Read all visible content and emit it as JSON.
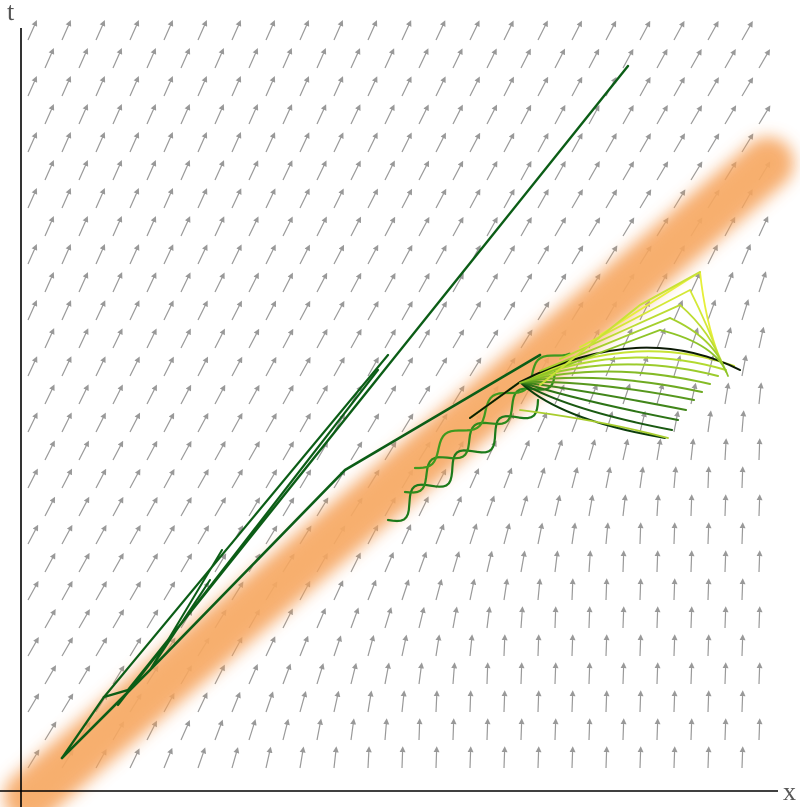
{
  "axes": {
    "x_label": "x",
    "t_label": "t"
  },
  "colors": {
    "arrow": "#999999",
    "axis": "#000000",
    "band": "#f5a15a",
    "dark_green": "#0b5d16",
    "light_green": "#ddee3a"
  }
}
